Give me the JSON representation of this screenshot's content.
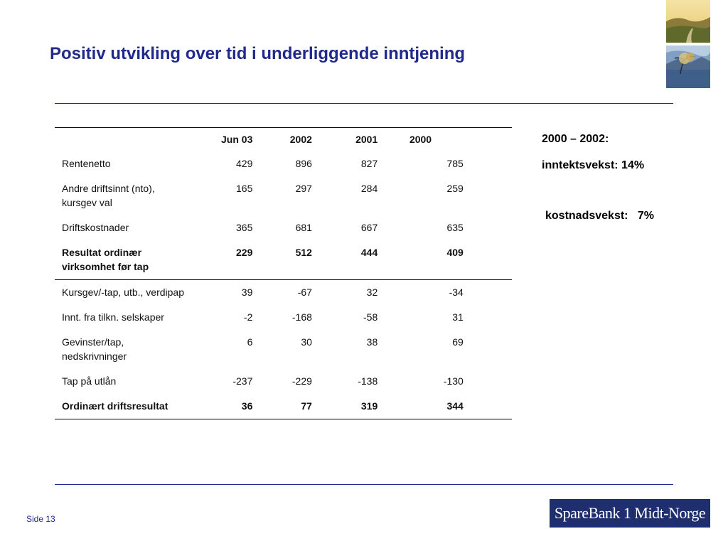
{
  "title": "Positiv utvikling over tid i underliggende inntjening",
  "table": {
    "headers": [
      "",
      "Jun 03",
      "2002",
      "2001",
      "2000"
    ],
    "rows": [
      {
        "label": "Rentenetto",
        "jun03": "429",
        "y2002": "896",
        "y2001": "827",
        "y2000": "785"
      },
      {
        "label": "Andre driftsinnt (nto), kursgev val",
        "jun03": "165",
        "y2002": "297",
        "y2001": "284",
        "y2000": "259"
      },
      {
        "label": "Driftskostnader",
        "jun03": "365",
        "y2002": "681",
        "y2001": "667",
        "y2000": "635"
      },
      {
        "label": "Resultat ordinær virksomhet før tap",
        "jun03": "229",
        "y2002": "512",
        "y2001": "444",
        "y2000": "409"
      },
      {
        "label": "Kursgev/-tap, utb., verdipap",
        "jun03": "39",
        "y2002": "-67",
        "y2001": "32",
        "y2000": "-34"
      },
      {
        "label": "Innt. fra tilkn. selskaper",
        "jun03": "-2",
        "y2002": "-168",
        "y2001": "-58",
        "y2000": "31"
      },
      {
        "label": "Gevinster/tap, nedskrivninger",
        "jun03": "6",
        "y2002": "30",
        "y2001": "38",
        "y2000": "69"
      },
      {
        "label": "Tap på utlån",
        "jun03": "-237",
        "y2002": "-229",
        "y2001": "-138",
        "y2000": "-130"
      },
      {
        "label": "Ordinært driftsresultat",
        "jun03": "36",
        "y2002": "77",
        "y2001": "319",
        "y2000": "344"
      }
    ]
  },
  "notes": {
    "period": "2000 – 2002:",
    "income_growth": "inntektsvekst: 14%",
    "cost_growth": "kostnadsvekst:   7%"
  },
  "footer": {
    "page": "Side 13",
    "logo_text": "SpareBank 1 Midt-Norge"
  },
  "colors": {
    "title": "#1f2a8c",
    "rule": "#1f2a8c",
    "logo_bg": "#1f2e6e"
  },
  "images": [
    "landscape-road-photo",
    "lake-tree-photo"
  ]
}
